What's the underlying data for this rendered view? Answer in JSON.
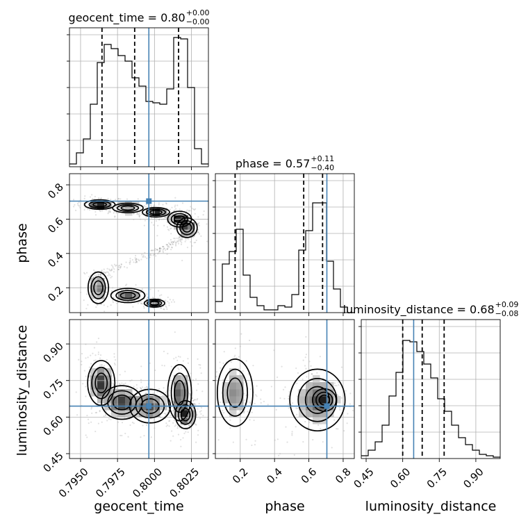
{
  "chart_data": {
    "type": "corner",
    "params": [
      "geocent_time",
      "phase",
      "luminosity_distance"
    ],
    "truths": {
      "geocent_time": 0.79962,
      "phase": 0.705,
      "luminosity_distance": 0.645
    },
    "ranges": {
      "geocent_time": [
        0.79425,
        0.80365
      ],
      "phase": [
        0.055,
        0.865
      ],
      "luminosity_distance": [
        0.43,
        1.0
      ]
    },
    "ticks": {
      "geocent_time": [
        0.795,
        0.7975,
        0.8,
        0.8025
      ],
      "phase": [
        0.2,
        0.4,
        0.6,
        0.8
      ],
      "luminosity_distance": [
        0.45,
        0.6,
        0.75,
        0.9
      ]
    },
    "tick_labels": {
      "geocent_time": [
        "0.7950",
        "0.7975",
        "0.8000",
        "0.8025"
      ],
      "phase": [
        "0.2",
        "0.4",
        "0.6",
        "0.8"
      ],
      "luminosity_distance": [
        "0.45",
        "0.60",
        "0.75",
        "0.90"
      ]
    },
    "titles": {
      "geocent_time": {
        "text": "geocent_time = 0.80",
        "plus": "+0.00",
        "minus": "−0.00"
      },
      "phase": {
        "text": "phase = 0.57",
        "plus": "+0.11",
        "minus": "−0.40"
      },
      "luminosity_distance": {
        "text": "luminosity_distance = 0.68",
        "plus": "+0.09",
        "minus": "−0.08"
      }
    },
    "quantiles": {
      "geocent_time": [
        0.79645,
        0.79866,
        0.80163
      ],
      "phase": [
        0.17,
        0.57,
        0.68
      ],
      "luminosity_distance": [
        0.6,
        0.68,
        0.77
      ]
    },
    "histograms": {
      "geocent_time": {
        "edges": [
          0.79425,
          0.79472,
          0.79519,
          0.79566,
          0.79613,
          0.7966,
          0.79707,
          0.79754,
          0.79801,
          0.79848,
          0.79895,
          0.79942,
          0.79989,
          0.80036,
          0.80083,
          0.8013,
          0.80177,
          0.80224,
          0.80271,
          0.80318,
          0.80365
        ],
        "counts": [
          0.02,
          0.1,
          0.2,
          0.45,
          0.75,
          0.88,
          0.85,
          0.8,
          0.76,
          0.64,
          0.58,
          0.47,
          0.46,
          0.45,
          0.56,
          0.93,
          0.92,
          0.57,
          0.13,
          0.02
        ]
      },
      "phase": {
        "edges": [
          0.055,
          0.0955,
          0.136,
          0.1765,
          0.217,
          0.2575,
          0.298,
          0.3385,
          0.379,
          0.4195,
          0.46,
          0.5005,
          0.541,
          0.5815,
          0.622,
          0.6625,
          0.703,
          0.7435,
          0.784,
          0.8245,
          0.865
        ],
        "counts": [
          0.08,
          0.35,
          0.44,
          0.6,
          0.27,
          0.11,
          0.05,
          0.02,
          0.02,
          0.05,
          0.04,
          0.13,
          0.45,
          0.59,
          0.79,
          0.79,
          0.37,
          0.17,
          0.04,
          0.0
        ]
      },
      "luminosity_distance": {
        "edges": [
          0.43,
          0.4585,
          0.487,
          0.5155,
          0.544,
          0.5725,
          0.601,
          0.6295,
          0.658,
          0.6865,
          0.715,
          0.7435,
          0.772,
          0.8005,
          0.829,
          0.8575,
          0.886,
          0.9145,
          0.943,
          0.9715,
          1.0
        ],
        "counts": [
          0.02,
          0.06,
          0.12,
          0.24,
          0.45,
          0.62,
          0.85,
          0.84,
          0.77,
          0.68,
          0.58,
          0.43,
          0.34,
          0.24,
          0.15,
          0.1,
          0.06,
          0.03,
          0.02,
          0.01
        ]
      }
    },
    "density_2d": {
      "phase_vs_geocent_time": {
        "x_param": "geocent_time",
        "y_param": "phase",
        "blobs": [
          {
            "x": 0.7963,
            "y": 0.685,
            "sx": 0.00045,
            "sy": 0.012,
            "w": 0.8
          },
          {
            "x": 0.7982,
            "y": 0.665,
            "sx": 0.00045,
            "sy": 0.012,
            "w": 0.9
          },
          {
            "x": 0.8001,
            "y": 0.64,
            "sx": 0.0004,
            "sy": 0.012,
            "w": 0.8
          },
          {
            "x": 0.8017,
            "y": 0.6,
            "sx": 0.00035,
            "sy": 0.02,
            "w": 0.9
          },
          {
            "x": 0.8022,
            "y": 0.55,
            "sx": 0.0003,
            "sy": 0.025,
            "w": 0.8
          },
          {
            "x": 0.7962,
            "y": 0.2,
            "sx": 0.0003,
            "sy": 0.04,
            "w": 0.55
          },
          {
            "x": 0.7982,
            "y": 0.155,
            "sx": 0.0005,
            "sy": 0.018,
            "w": 0.6
          },
          {
            "x": 0.8,
            "y": 0.11,
            "sx": 0.0003,
            "sy": 0.01,
            "w": 0.5
          }
        ],
        "bridge": [
          [
            0.7963,
            0.285
          ],
          [
            0.7985,
            0.35
          ],
          [
            0.8005,
            0.42
          ],
          [
            0.802,
            0.5
          ]
        ]
      },
      "luminosity_distance_vs_geocent_time": {
        "x_param": "geocent_time",
        "y_param": "luminosity_distance",
        "blobs": [
          {
            "x": 0.7964,
            "y": 0.74,
            "sx": 0.0004,
            "sy": 0.04,
            "w": 0.9
          },
          {
            "x": 0.7978,
            "y": 0.66,
            "sx": 0.0006,
            "sy": 0.03,
            "w": 0.9
          },
          {
            "x": 0.7997,
            "y": 0.645,
            "sx": 0.0006,
            "sy": 0.03,
            "w": 0.8
          },
          {
            "x": 0.8017,
            "y": 0.7,
            "sx": 0.00035,
            "sy": 0.05,
            "w": 0.8
          },
          {
            "x": 0.8021,
            "y": 0.61,
            "sx": 0.0003,
            "sy": 0.025,
            "w": 0.9
          }
        ]
      },
      "luminosity_distance_vs_phase": {
        "x_param": "phase",
        "y_param": "luminosity_distance",
        "blobs": [
          {
            "x": 0.17,
            "y": 0.7,
            "sx": 0.045,
            "sy": 0.06,
            "w": 0.8
          },
          {
            "x": 0.65,
            "y": 0.67,
            "sx": 0.07,
            "sy": 0.055,
            "w": 1.0
          },
          {
            "x": 0.69,
            "y": 0.67,
            "sx": 0.03,
            "sy": 0.02,
            "w": 0.6
          }
        ]
      }
    }
  }
}
